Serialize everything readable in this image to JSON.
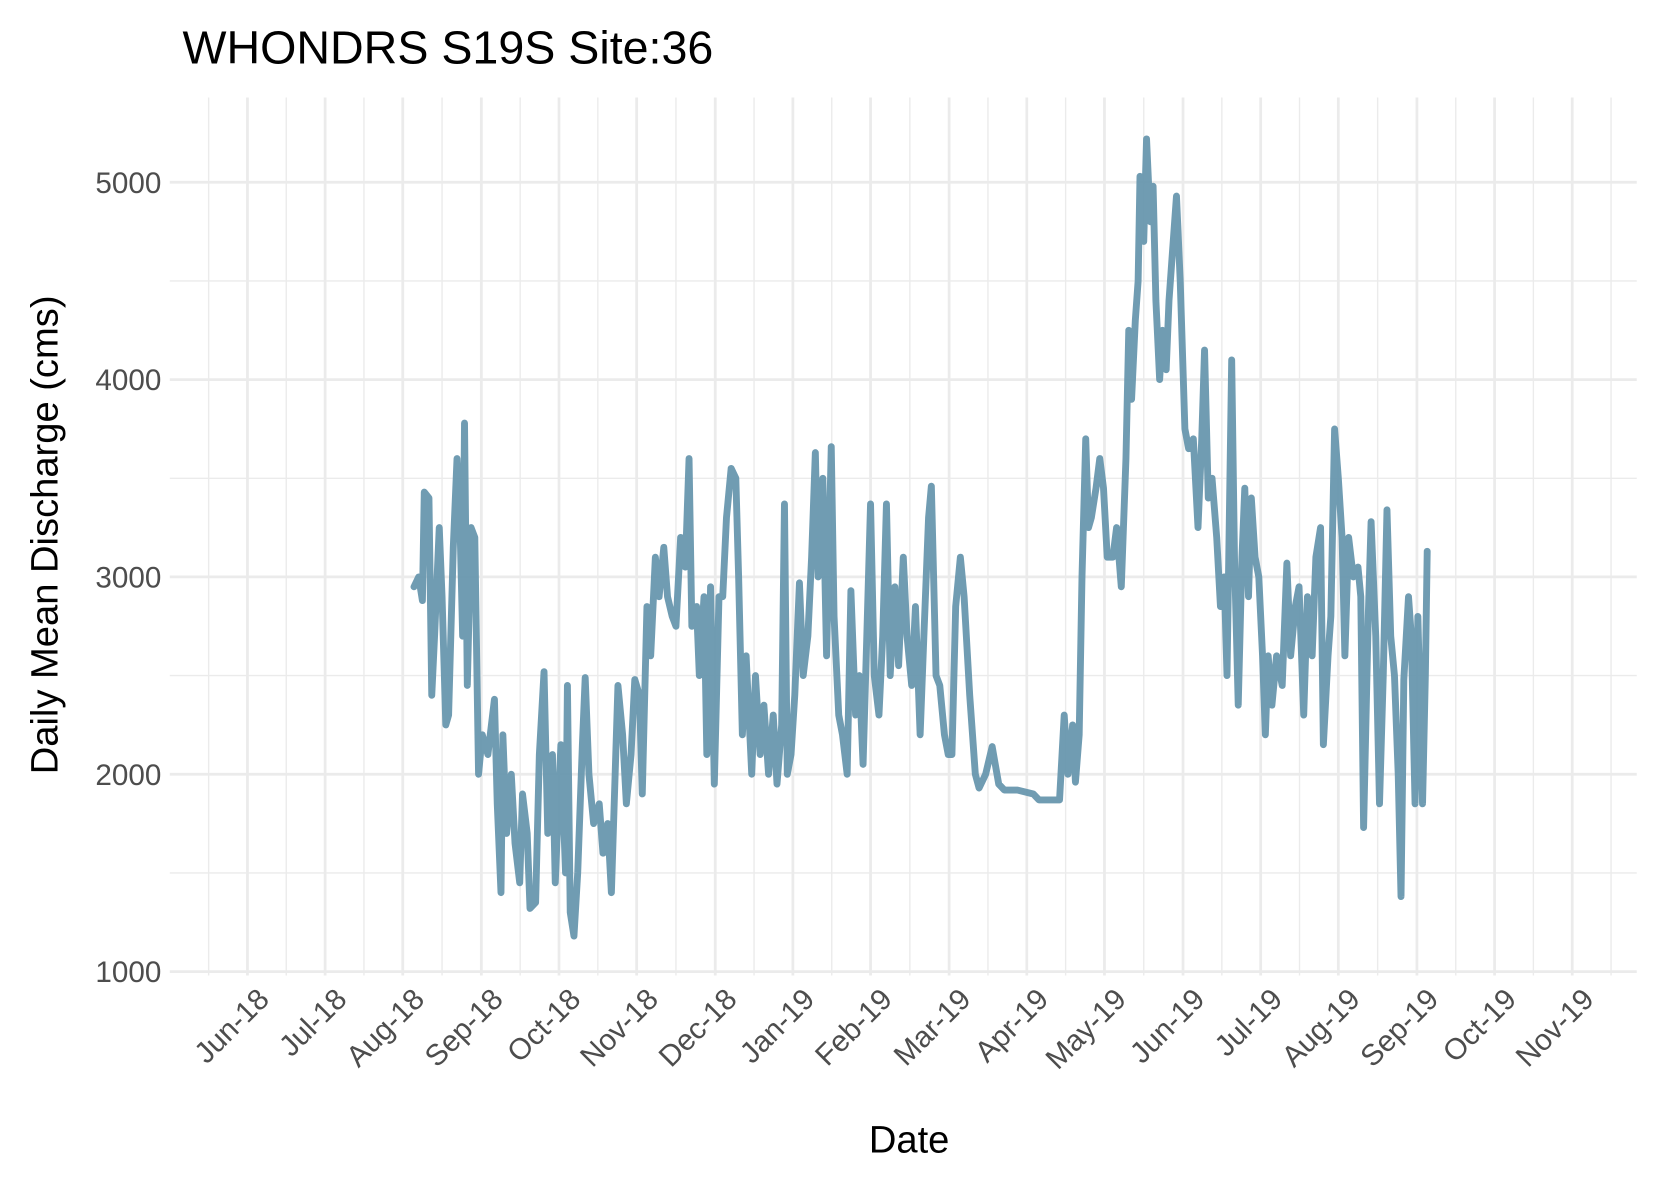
{
  "chart_data": {
    "type": "line",
    "title": "WHONDRS S19S Site:36",
    "x_label": "Date",
    "y_label": "Daily Mean Discharge (cms)",
    "color": "#6897ae",
    "grid": true,
    "xlim": [
      2018.334,
      2019.902
    ],
    "ylim": [
      980,
      5430
    ],
    "yticks": [
      1000,
      2000,
      3000,
      4000,
      5000
    ],
    "xticks": [
      {
        "value": 2018.417,
        "label": "Jun-18"
      },
      {
        "value": 2018.5,
        "label": "Jul-18"
      },
      {
        "value": 2018.583,
        "label": "Aug-18"
      },
      {
        "value": 2018.667,
        "label": "Sep-18"
      },
      {
        "value": 2018.75,
        "label": "Oct-18"
      },
      {
        "value": 2018.833,
        "label": "Nov-18"
      },
      {
        "value": 2018.917,
        "label": "Dec-18"
      },
      {
        "value": 2019,
        "label": "Jan-19"
      },
      {
        "value": 2019.083,
        "label": "Feb-19"
      },
      {
        "value": 2019.167,
        "label": "Mar-19"
      },
      {
        "value": 2019.25,
        "label": "Apr-19"
      },
      {
        "value": 2019.333,
        "label": "May-19"
      },
      {
        "value": 2019.417,
        "label": "Jun-19"
      },
      {
        "value": 2019.5,
        "label": "Jul-19"
      },
      {
        "value": 2019.583,
        "label": "Aug-19"
      },
      {
        "value": 2019.667,
        "label": "Sep-19"
      },
      {
        "value": 2019.75,
        "label": "Oct-19"
      },
      {
        "value": 2019.833,
        "label": "Nov-19"
      }
    ],
    "x": [
      2018.595,
      2018.6,
      2018.604,
      2018.606,
      2018.611,
      2018.614,
      2018.617,
      2018.622,
      2018.625,
      2018.629,
      2018.632,
      2018.637,
      2018.641,
      2018.644,
      2018.647,
      2018.649,
      2018.652,
      2018.656,
      2018.66,
      2018.664,
      2018.668,
      2018.674,
      2018.681,
      2018.684,
      2018.688,
      2018.69,
      2018.694,
      2018.699,
      2018.703,
      2018.708,
      2018.711,
      2018.716,
      2018.719,
      2018.725,
      2018.729,
      2018.734,
      2018.738,
      2018.743,
      2018.746,
      2018.752,
      2018.757,
      2018.759,
      2018.762,
      2018.766,
      2018.77,
      2018.775,
      2018.778,
      2018.782,
      2018.787,
      2018.793,
      2018.797,
      2018.802,
      2018.806,
      2018.81,
      2018.813,
      2018.818,
      2018.822,
      2018.827,
      2018.831,
      2018.836,
      2018.839,
      2018.844,
      2018.848,
      2018.853,
      2018.857,
      2018.862,
      2018.866,
      2018.871,
      2018.875,
      2018.88,
      2018.885,
      2018.889,
      2018.892,
      2018.897,
      2018.9,
      2018.905,
      2018.908,
      2018.912,
      2018.916,
      2018.921,
      2018.925,
      2018.929,
      2018.934,
      2018.939,
      2018.942,
      2018.946,
      2018.95,
      2018.956,
      2018.96,
      2018.965,
      2018.969,
      2018.974,
      2018.979,
      2018.983,
      2018.988,
      2018.991,
      2018.994,
      2018.998,
      2019.002,
      2019.007,
      2019.011,
      2019.016,
      2019.02,
      2019.024,
      2019.027,
      2019.032,
      2019.036,
      2019.041,
      2019.044,
      2019.049,
      2019.053,
      2019.058,
      2019.062,
      2019.067,
      2019.071,
      2019.075,
      2019.079,
      2019.083,
      2019.087,
      2019.092,
      2019.096,
      2019.1,
      2019.104,
      2019.109,
      2019.113,
      2019.118,
      2019.122,
      2019.127,
      2019.131,
      2019.136,
      2019.14,
      2019.145,
      2019.148,
      2019.153,
      2019.157,
      2019.162,
      2019.166,
      2019.17,
      2019.174,
      2019.179,
      2019.183,
      2019.189,
      2019.195,
      2019.199,
      2019.206,
      2019.213,
      2019.22,
      2019.226,
      2019.24,
      2019.257,
      2019.263,
      2019.285,
      2019.29,
      2019.294,
      2019.299,
      2019.302,
      2019.306,
      2019.309,
      2019.313,
      2019.316,
      2019.319,
      2019.324,
      2019.328,
      2019.332,
      2019.336,
      2019.342,
      2019.346,
      2019.351,
      2019.356,
      2019.359,
      2019.362,
      2019.366,
      2019.369,
      2019.371,
      2019.375,
      2019.378,
      2019.382,
      2019.385,
      2019.388,
      2019.392,
      2019.395,
      2019.399,
      2019.402,
      2019.405,
      2019.41,
      2019.414,
      2019.419,
      2019.423,
      2019.428,
      2019.433,
      2019.437,
      2019.44,
      2019.444,
      2019.448,
      2019.453,
      2019.457,
      2019.461,
      2019.464,
      2019.469,
      2019.472,
      2019.476,
      2019.48,
      2019.483,
      2019.487,
      2019.49,
      2019.494,
      2019.498,
      2019.502,
      2019.505,
      2019.508,
      2019.512,
      2019.517,
      2019.523,
      2019.528,
      2019.532,
      2019.537,
      2019.541,
      2019.546,
      2019.55,
      2019.555,
      2019.559,
      2019.564,
      2019.567,
      2019.572,
      2019.575,
      2019.579,
      2019.583,
      2019.587,
      2019.59,
      2019.594,
      2019.599,
      2019.604,
      2019.607,
      2019.61,
      2019.615,
      2019.618,
      2019.623,
      2019.627,
      2019.631,
      2019.635,
      2019.639,
      2019.643,
      2019.647,
      2019.65,
      2019.653,
      2019.658,
      2019.661,
      2019.665,
      2019.668,
      2019.673,
      2019.676,
      2019.678
    ],
    "values": [
      2950,
      3000,
      2880,
      3430,
      3400,
      2400,
      2700,
      3250,
      2900,
      2250,
      2300,
      3150,
      3600,
      3300,
      2700,
      3780,
      2450,
      3250,
      3200,
      2000,
      2200,
      2100,
      2380,
      1850,
      1400,
      2200,
      1700,
      2000,
      1650,
      1450,
      1900,
      1700,
      1320,
      1350,
      2100,
      2520,
      1700,
      2100,
      1450,
      2150,
      1500,
      2450,
      1300,
      1180,
      1500,
      2150,
      2490,
      2000,
      1750,
      1850,
      1600,
      1750,
      1400,
      2000,
      2450,
      2200,
      1850,
      2100,
      2480,
      2400,
      1900,
      2850,
      2600,
      3100,
      2900,
      3150,
      2900,
      2800,
      2750,
      3200,
      3050,
      3600,
      2750,
      2850,
      2500,
      2900,
      2100,
      2950,
      1950,
      2900,
      2900,
      3300,
      3550,
      3500,
      3000,
      2200,
      2600,
      2000,
      2500,
      2100,
      2350,
      2000,
      2300,
      1950,
      2250,
      3370,
      2000,
      2100,
      2400,
      2970,
      2500,
      2700,
      3100,
      3630,
      3000,
      3500,
      2600,
      3660,
      2800,
      2300,
      2200,
      2000,
      2930,
      2300,
      2500,
      2050,
      2700,
      3370,
      2500,
      2300,
      2700,
      3370,
      2500,
      2950,
      2550,
      3100,
      2700,
      2450,
      2850,
      2200,
      2700,
      3300,
      3460,
      2500,
      2450,
      2200,
      2100,
      2100,
      2850,
      3100,
      2900,
      2400,
      2000,
      1930,
      2000,
      2140,
      1950,
      1920,
      1920,
      1900,
      1870,
      1870,
      2300,
      2000,
      2250,
      1960,
      2200,
      3000,
      3700,
      3250,
      3300,
      3450,
      3600,
      3450,
      3100,
      3100,
      3250,
      2950,
      3600,
      4250,
      3900,
      4300,
      4500,
      5030,
      4700,
      5220,
      4800,
      4980,
      4400,
      4000,
      4250,
      4050,
      4400,
      4600,
      4930,
      4500,
      3750,
      3650,
      3700,
      3250,
      3700,
      4150,
      3400,
      3500,
      3200,
      2850,
      3000,
      2500,
      4100,
      3100,
      2350,
      3100,
      3450,
      2900,
      3400,
      3100,
      3000,
      2600,
      2200,
      2600,
      2350,
      2600,
      2450,
      3070,
      2600,
      2850,
      2950,
      2300,
      2900,
      2600,
      3100,
      3250,
      2150,
      2600,
      2800,
      3750,
      3500,
      3200,
      2600,
      3200,
      3000,
      3050,
      2900,
      1730,
      2800,
      3280,
      2700,
      1850,
      2500,
      3340,
      2700,
      2500,
      2000,
      1380,
      2480,
      2900,
      2700,
      1850,
      2800,
      1850,
      2500,
      3130
    ]
  }
}
